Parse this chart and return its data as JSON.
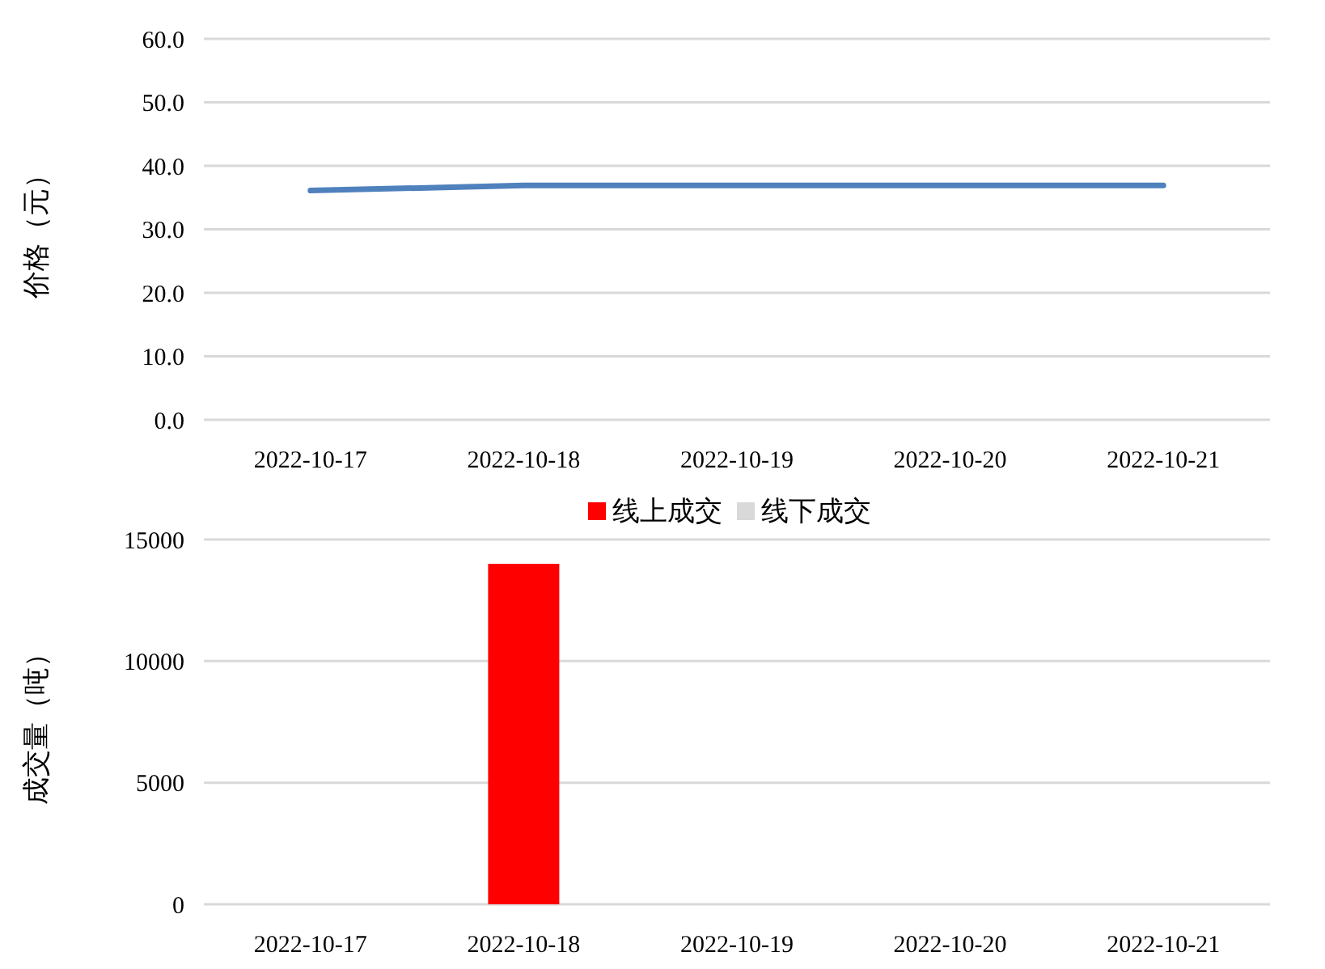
{
  "chart_data": [
    {
      "type": "line",
      "ylabel": "价格（元）",
      "categories": [
        "2022-10-17",
        "2022-10-18",
        "2022-10-19",
        "2022-10-20",
        "2022-10-21"
      ],
      "series": [
        {
          "color": "#4f81bd",
          "values": [
            36.1,
            36.9,
            36.9,
            36.9,
            36.9
          ]
        }
      ],
      "ylim": [
        0,
        60
      ],
      "yticks": [
        {
          "value": 0,
          "label": "0.0"
        },
        {
          "value": 10,
          "label": "10.0"
        },
        {
          "value": 20,
          "label": "20.0"
        },
        {
          "value": 30,
          "label": "30.0"
        },
        {
          "value": 40,
          "label": "40.0"
        },
        {
          "value": 50,
          "label": "50.0"
        },
        {
          "value": 60,
          "label": "60.0"
        }
      ],
      "grid": "y",
      "legend": false,
      "marker": "none",
      "line_style": "solid"
    },
    {
      "type": "bar",
      "ylabel": "成交量（吨）",
      "stacked": true,
      "categories": [
        "2022-10-17",
        "2022-10-18",
        "2022-10-19",
        "2022-10-20",
        "2022-10-21"
      ],
      "series": [
        {
          "name": "线上成交",
          "color": "#ff0000",
          "values": [
            null,
            14000,
            null,
            null,
            null
          ]
        },
        {
          "name": "线下成交",
          "color": "#d9d9d9",
          "values": [
            null,
            null,
            null,
            null,
            null
          ]
        }
      ],
      "ylim": [
        0,
        15000
      ],
      "yticks": [
        0,
        5000,
        10000,
        15000
      ],
      "grid": "y",
      "legend": "top"
    }
  ]
}
